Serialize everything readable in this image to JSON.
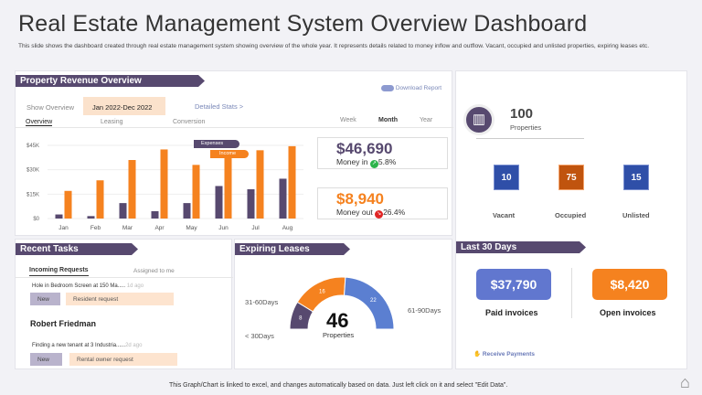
{
  "title": "Real Estate Management System Overview Dashboard",
  "description": "This slide shows the dashboard created through real estate management system showing overview of the whole year.  It represents details related to money inflow and outflow. Vacant,  occupied and unlisted properties, expiring leases etc.",
  "revenue": {
    "header": "Property Revenue Overview",
    "download": "Download Report",
    "show_overview": "Show Overview",
    "date_range": "Jan 2022-Dec  2022",
    "detailed_stats": "Detailed Stats  >",
    "tabs": [
      "Overview",
      "Leasing",
      "Conversion"
    ],
    "periods": [
      "Week",
      "Month",
      "Year"
    ],
    "money_in": {
      "value": "$46,690",
      "label": "Money in",
      "change": "5.8%"
    },
    "money_out": {
      "value": "$8,940",
      "label": "Money out",
      "change": "26.4%"
    },
    "colors": {
      "expenses": "#57496f",
      "income": "#f5821f"
    }
  },
  "chart_data": {
    "type": "bar",
    "categories": [
      "Jan",
      "Feb",
      "Mar",
      "Apr",
      "May",
      "Jun",
      "Jul",
      "Aug"
    ],
    "series": [
      {
        "name": "Expenses",
        "values": [
          2500,
          1500,
          9500,
          4500,
          9500,
          20000,
          18000,
          24500
        ]
      },
      {
        "name": "Income",
        "values": [
          17000,
          23500,
          36000,
          42500,
          33000,
          38000,
          42000,
          44500
        ]
      }
    ],
    "yticks": [
      "$0",
      "$15K",
      "$30K",
      "$45K"
    ],
    "ylim": [
      0,
      45000
    ],
    "grid": true
  },
  "properties": {
    "total": "100",
    "label": "Properties",
    "stats": [
      {
        "value": "10",
        "label": "Vacant",
        "color": "#2f4fa8"
      },
      {
        "value": "75",
        "label": "Occupied",
        "color": "#c0540e"
      },
      {
        "value": "15",
        "label": "Unlisted",
        "color": "#2f4fa8"
      }
    ]
  },
  "tasks": {
    "header": "Recent Tasks",
    "tabs": [
      "Incoming Requests",
      "Assigned to me"
    ],
    "items": [
      {
        "text": "Hole in Bedroom Screen at 150 Ma.....",
        "age": "1d ago",
        "status": "New",
        "type": "Resident request"
      },
      {
        "text": "Finding a new tenant at 3 Industria......",
        "age": "2d ago",
        "status": "New",
        "type": "Rental owner request"
      }
    ],
    "person": "Robert Friedman"
  },
  "leases": {
    "header": "Expiring Leases",
    "total": "46",
    "label": "Properties",
    "segments": [
      {
        "label": "< 30Days",
        "value": 8,
        "color": "#57496f"
      },
      {
        "label": "31-60Days",
        "value": 16,
        "color": "#f5821f"
      },
      {
        "label": "61-90Days",
        "value": 22,
        "color": "#5b7fd1"
      }
    ]
  },
  "last30": {
    "header": "Last 30 Days",
    "paid": {
      "value": "$37,790",
      "label": "Paid invoices"
    },
    "open": {
      "value": "$8,420",
      "label": "Open invoices"
    },
    "receive": "Receive Payments"
  },
  "footer": "This Graph/Chart is linked to excel, and changes automatically based on data. Just left click on it and select \"Edit Data\"."
}
